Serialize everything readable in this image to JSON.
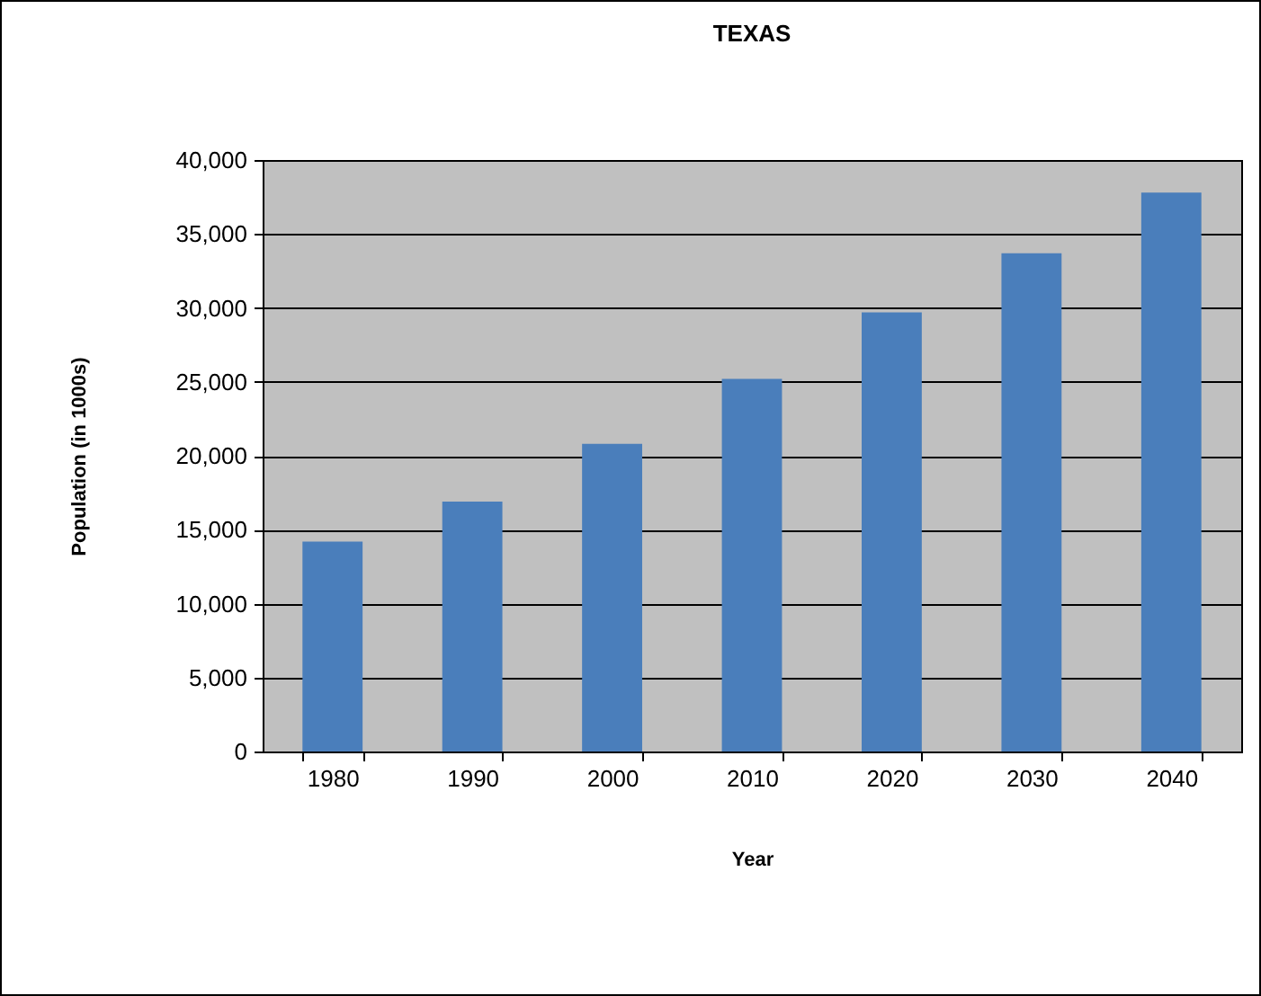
{
  "chart_data": {
    "type": "bar",
    "title": "TEXAS",
    "xlabel": "Year",
    "ylabel": "Population (in 1000s)",
    "categories": [
      "1980",
      "1990",
      "2000",
      "2010",
      "2020",
      "2030",
      "2040"
    ],
    "values": [
      14200,
      16900,
      20800,
      25200,
      29700,
      33700,
      37800
    ],
    "color": "#4a7ebb",
    "ylim": [
      0,
      40000
    ],
    "yticks": [
      {
        "value": 0,
        "label": "0"
      },
      {
        "value": 5000,
        "label": "5,000"
      },
      {
        "value": 10000,
        "label": "10,000"
      },
      {
        "value": 15000,
        "label": "15,000"
      },
      {
        "value": 20000,
        "label": "20,000"
      },
      {
        "value": 25000,
        "label": "25,000"
      },
      {
        "value": 30000,
        "label": "30,000"
      },
      {
        "value": 35000,
        "label": "35,000"
      },
      {
        "value": 40000,
        "label": "40,000"
      }
    ],
    "grid": "y"
  }
}
